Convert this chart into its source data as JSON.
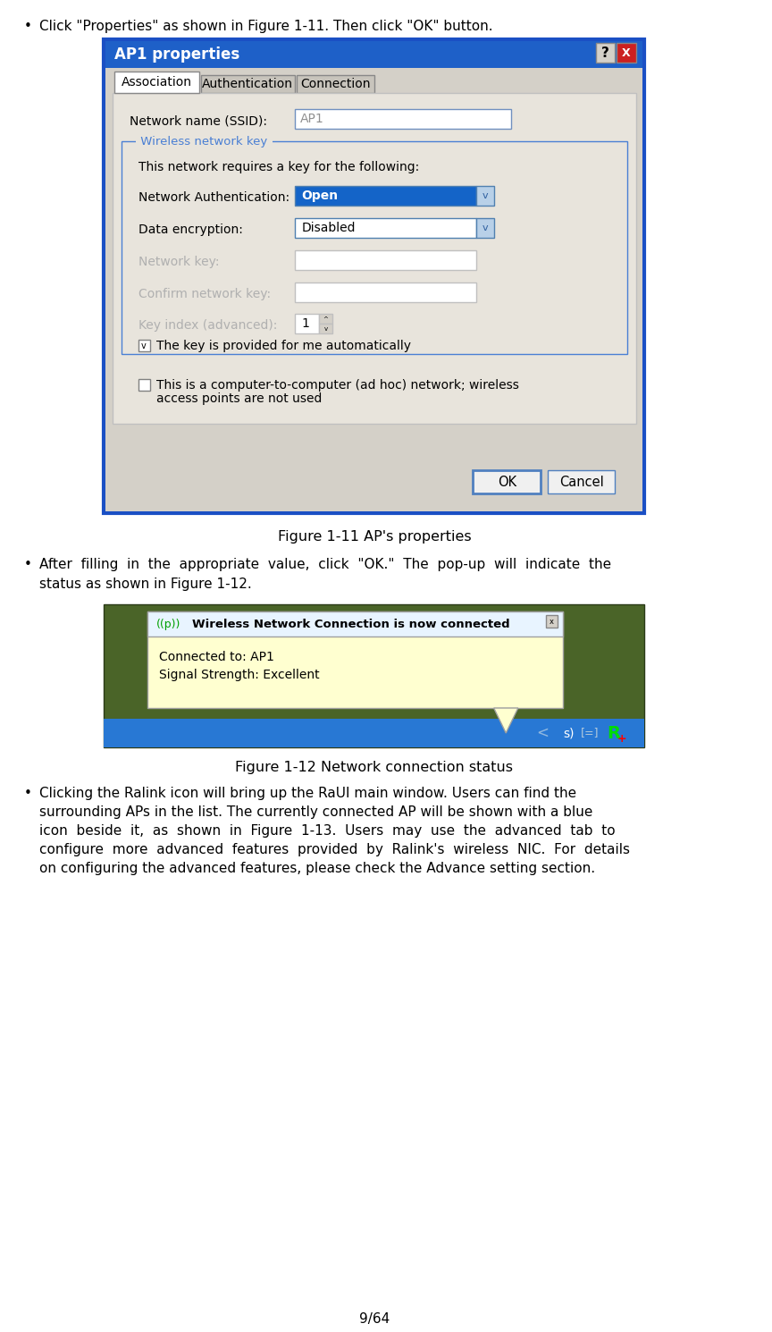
{
  "page_number": "9/64",
  "background_color": "#ffffff",
  "bullet1": "Click \"Properties\" as shown in Figure 1-11. Then click \"OK\" button.",
  "fig1_caption": "Figure 1-11 AP's properties",
  "bullet2_line1": "After  filling  in  the  appropriate  value,  click  \"OK.\"  The  pop-up  will  indicate  the",
  "bullet2_line2": "status as shown in Figure 1-12.",
  "fig2_caption": "Figure 1-12 Network connection status",
  "bullet3_lines": [
    "Clicking the Ralink icon will bring up the RaUI main window. Users can find the",
    "surrounding APs in the list. The currently connected AP will be shown with a blue",
    "icon  beside  it,  as  shown  in  Figure  1-13.  Users  may  use  the  advanced  tab  to",
    "configure  more  advanced  features  provided  by  Ralink's  wireless  NIC.  For  details",
    "on configuring the advanced features, please check the Advance setting section."
  ],
  "win_title_color": "#1E60C8",
  "win_border_color": "#1a4fc4",
  "win_bg_color": "#d4d0c8",
  "dropdown_blue_color": "#1464c8",
  "group_border_color": "#4a7fd4",
  "group_label_color": "#4a7fd4",
  "popup_bg": "#ffffd0",
  "taskbar_color": "#2878d4",
  "grass_color": "#4a6428"
}
